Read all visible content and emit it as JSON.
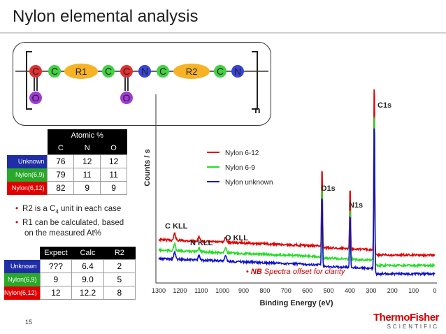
{
  "title": "Nylon elemental analysis",
  "formula": {
    "atoms": [
      "C",
      "C",
      "R1",
      "C",
      "C",
      "N",
      "C",
      "R2",
      "C",
      "N"
    ],
    "oxygens": [
      "O",
      "O"
    ],
    "subscript": "n"
  },
  "atomic_table": {
    "title": "Atomic %",
    "columns": [
      "C",
      "N",
      "O"
    ],
    "rows": [
      {
        "label": "Unknown",
        "values": [
          "76",
          "12",
          "12"
        ]
      },
      {
        "label": "Nylon(6,9)",
        "values": [
          "79",
          "11",
          "11"
        ]
      },
      {
        "label": "Nylon(6,12)",
        "values": [
          "82",
          "9",
          "9"
        ]
      }
    ]
  },
  "bullets": [
    {
      "pre": "R2 is a C",
      "sub": "4",
      "post": " unit in each case"
    },
    {
      "pre": "R1 can be calculated, based",
      "sub": "",
      "post": ""
    },
    {
      "pre": "on the measured At%",
      "sub": "",
      "post": ""
    }
  ],
  "calc_table": {
    "columns": [
      "Expect",
      "Calc",
      "R2"
    ],
    "rows": [
      {
        "label": "Unknown",
        "values": [
          "???",
          "6.4",
          "2"
        ]
      },
      {
        "label": "Nylon(6,9)",
        "values": [
          "9",
          "9.0",
          "5"
        ]
      },
      {
        "label": "Nylon(6,12)",
        "values": [
          "12",
          "12.2",
          "8"
        ]
      }
    ]
  },
  "page_number": "15",
  "logo": {
    "line1": "ThermoFisher",
    "line2": "SCIENTIFIC"
  },
  "chart_data": {
    "type": "line",
    "xlabel": "Binding Energy (eV)",
    "ylabel": "Counts / s",
    "x_ticks": [
      1300,
      1200,
      1100,
      1000,
      900,
      800,
      700,
      600,
      500,
      400,
      300,
      200,
      100,
      0
    ],
    "xlim": [
      1300,
      0
    ],
    "legend": "top-left of plot",
    "series": [
      {
        "name": "Nylon 6-12",
        "color": "#e00000"
      },
      {
        "name": "Nylon 6-9",
        "color": "#22dd22"
      },
      {
        "name": "Nylon unknown",
        "color": "#1010cc"
      }
    ],
    "annotations": [
      "C1s",
      "O1s",
      "N1s",
      "C KLL",
      "N KLL",
      "O KLL"
    ],
    "note_prefix": "NB",
    "note_text": " Spectra offset for clarity",
    "grid": false
  }
}
